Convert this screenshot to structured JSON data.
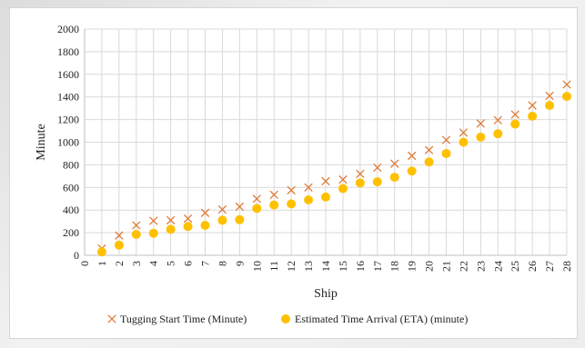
{
  "chart_data": {
    "type": "scatter",
    "title": "",
    "xlabel": "Ship",
    "ylabel": "Minute",
    "xlim": [
      0,
      28
    ],
    "ylim": [
      0,
      2000
    ],
    "x_ticks": [
      0,
      1,
      2,
      3,
      4,
      5,
      6,
      7,
      8,
      9,
      10,
      11,
      12,
      13,
      14,
      15,
      16,
      17,
      18,
      19,
      20,
      21,
      22,
      23,
      24,
      25,
      26,
      27,
      28
    ],
    "y_ticks": [
      0,
      200,
      400,
      600,
      800,
      1000,
      1200,
      1400,
      1600,
      1800,
      2000
    ],
    "grid": true,
    "legend_position": "bottom",
    "series": [
      {
        "name": "Tugging Start Time (Minute)",
        "marker": "x",
        "color": "#e07b39",
        "x": [
          1,
          2,
          3,
          4,
          5,
          6,
          7,
          8,
          9,
          10,
          11,
          12,
          13,
          14,
          15,
          16,
          17,
          18,
          19,
          20,
          21,
          22,
          23,
          24,
          25,
          26,
          27,
          28
        ],
        "values": [
          60,
          175,
          265,
          305,
          310,
          325,
          375,
          405,
          430,
          500,
          535,
          575,
          600,
          655,
          670,
          720,
          775,
          810,
          880,
          930,
          1020,
          1085,
          1165,
          1195,
          1245,
          1325,
          1410,
          1510
        ]
      },
      {
        "name": "Estimated Time Arrival (ETA) (minute)",
        "marker": "circle",
        "color": "#ffc000",
        "x": [
          1,
          2,
          3,
          4,
          5,
          6,
          7,
          8,
          9,
          10,
          11,
          12,
          13,
          14,
          15,
          16,
          17,
          18,
          19,
          20,
          21,
          22,
          23,
          24,
          25,
          26,
          27,
          28
        ],
        "values": [
          30,
          90,
          185,
          195,
          230,
          255,
          265,
          310,
          315,
          415,
          445,
          455,
          490,
          515,
          590,
          640,
          650,
          690,
          745,
          825,
          900,
          1000,
          1045,
          1075,
          1160,
          1230,
          1325,
          1405
        ]
      }
    ]
  }
}
